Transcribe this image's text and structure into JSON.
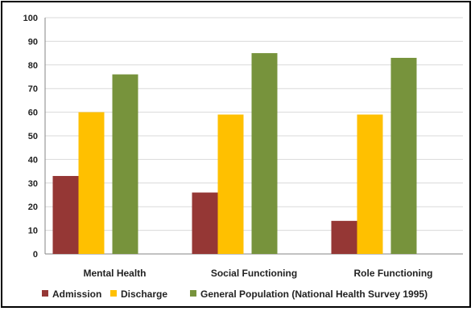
{
  "chart_data": {
    "type": "bar",
    "title": "",
    "xlabel": "",
    "ylabel": "",
    "categories": [
      "Mental Health",
      "Social Functioning",
      "Role Functioning"
    ],
    "series": [
      {
        "name": "Admission",
        "color": "#953735",
        "values": [
          33,
          26,
          14
        ]
      },
      {
        "name": "Discharge",
        "color": "#ffc000",
        "values": [
          60,
          59,
          59
        ]
      },
      {
        "name": "General Population (National Health Survey 1995)",
        "color": "#77933c",
        "values": [
          76,
          85,
          83
        ]
      }
    ],
    "ylim": [
      0,
      100
    ],
    "yticks": [
      0,
      10,
      20,
      30,
      40,
      50,
      60,
      70,
      80,
      90,
      100
    ],
    "grid": true,
    "legend_position": "bottom"
  }
}
